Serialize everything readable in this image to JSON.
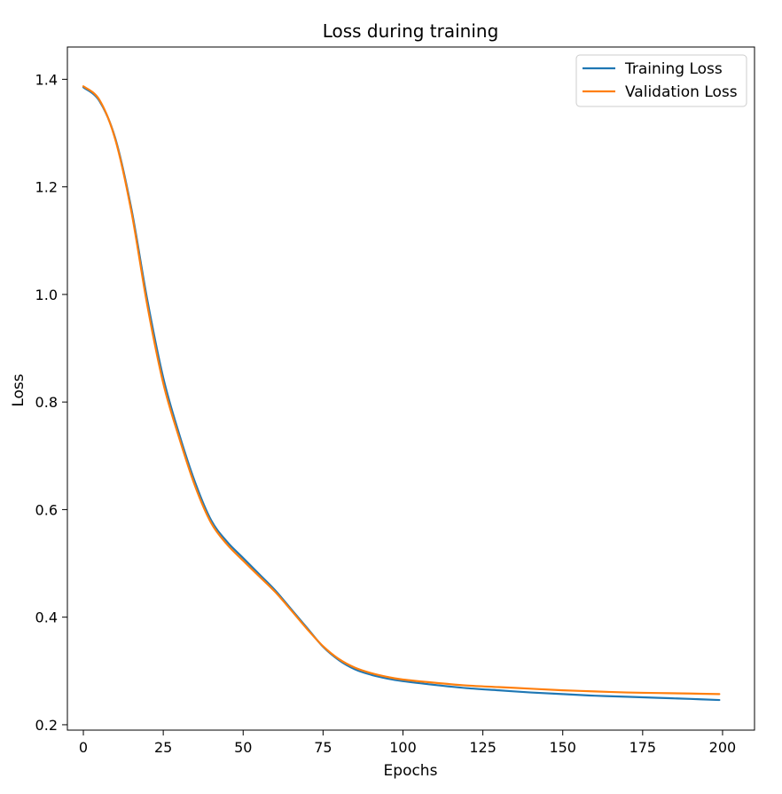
{
  "chart_data": {
    "type": "line",
    "title": "Loss during training",
    "xlabel": "Epochs",
    "ylabel": "Loss",
    "xlim": [
      -5,
      210
    ],
    "ylim": [
      0.19,
      1.46
    ],
    "x_ticks": [
      0,
      25,
      50,
      75,
      100,
      125,
      150,
      175,
      200
    ],
    "y_ticks": [
      0.2,
      0.4,
      0.6,
      0.8,
      1.0,
      1.2,
      1.4
    ],
    "y_tick_labels": [
      "0.2",
      "0.4",
      "0.6",
      "0.8",
      "1.0",
      "1.2",
      "1.4"
    ],
    "grid": false,
    "legend_position": "top-right",
    "x": [
      0,
      5,
      10,
      15,
      20,
      25,
      30,
      35,
      40,
      45,
      50,
      55,
      60,
      65,
      70,
      75,
      80,
      85,
      90,
      95,
      100,
      110,
      120,
      130,
      140,
      150,
      160,
      170,
      180,
      190,
      199
    ],
    "series": [
      {
        "name": "Training Loss",
        "color": "#1f77b4",
        "values": [
          1.385,
          1.36,
          1.29,
          1.16,
          0.99,
          0.845,
          0.74,
          0.65,
          0.58,
          0.54,
          0.51,
          0.48,
          0.45,
          0.415,
          0.38,
          0.345,
          0.32,
          0.303,
          0.293,
          0.286,
          0.281,
          0.274,
          0.268,
          0.264,
          0.26,
          0.257,
          0.254,
          0.252,
          0.25,
          0.248,
          0.246
        ]
      },
      {
        "name": "Validation Loss",
        "color": "#ff7f0e",
        "values": [
          1.387,
          1.362,
          1.288,
          1.155,
          0.98,
          0.835,
          0.733,
          0.643,
          0.575,
          0.535,
          0.505,
          0.476,
          0.447,
          0.413,
          0.378,
          0.346,
          0.322,
          0.306,
          0.296,
          0.289,
          0.284,
          0.278,
          0.273,
          0.27,
          0.267,
          0.264,
          0.262,
          0.26,
          0.259,
          0.258,
          0.257
        ]
      }
    ]
  }
}
